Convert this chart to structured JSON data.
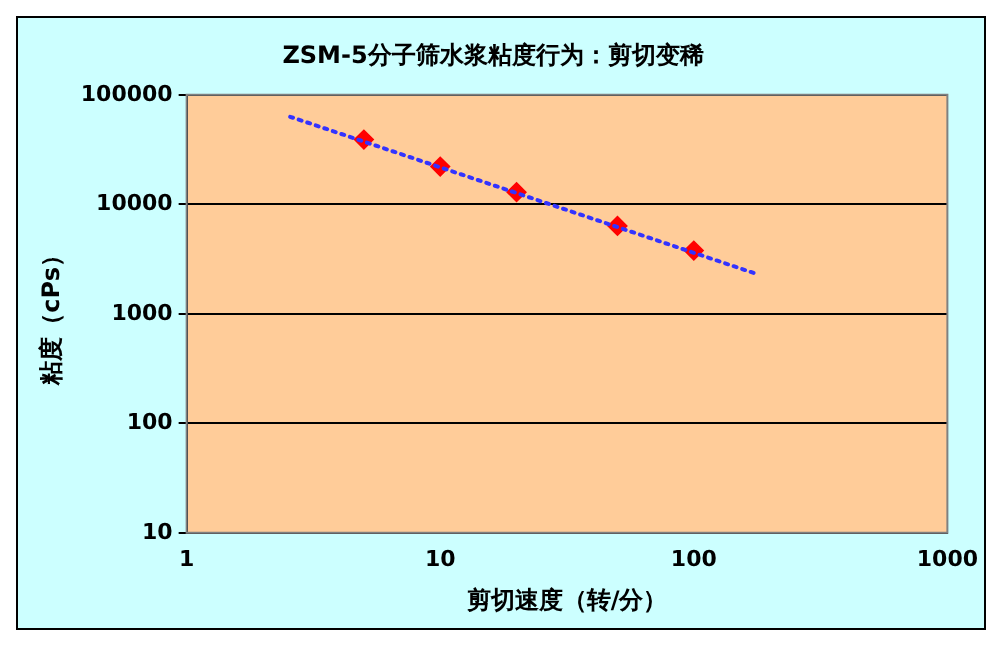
{
  "chart_data": {
    "type": "scatter",
    "title": "ZSM-5分子筛水浆粘度行为：剪切变稀",
    "xlabel": "剪切速度（转/分）",
    "ylabel": "粘度（cPs）",
    "log": "xy",
    "xlim": [
      1,
      1000
    ],
    "xticks": [
      1,
      10,
      100,
      1000
    ],
    "ylim": [
      10,
      100000
    ],
    "yticks": [
      10,
      100,
      1000,
      10000,
      100000
    ],
    "grid": "y",
    "legend": false,
    "series": [
      {
        "type": "line",
        "color": "#3333ff",
        "marker": "none",
        "line_style": "dotted",
        "x": [
          2.56,
          177
        ],
        "values": [
          63000,
          2310
        ]
      },
      {
        "color": "#ff0000",
        "marker": "diamond",
        "x": [
          5,
          10,
          20,
          50,
          100
        ],
        "values": [
          39000,
          22100,
          12900,
          6350,
          3780
        ]
      }
    ]
  }
}
